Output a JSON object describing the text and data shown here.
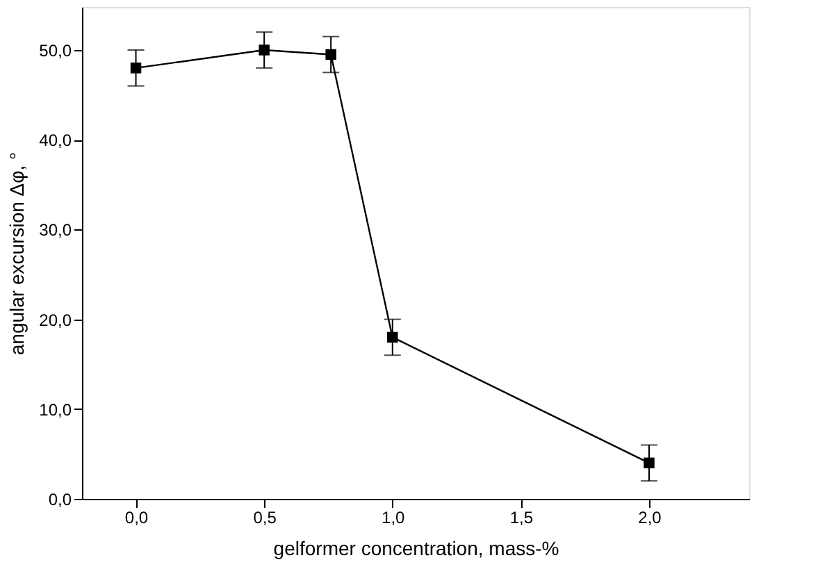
{
  "chart_data": {
    "type": "line",
    "xlabel": "gelformer concentration, mass-%",
    "ylabel": "angular excursion Δφ, °",
    "x": [
      0.0,
      0.5,
      0.76,
      1.0,
      2.0
    ],
    "series": [
      {
        "color": "#000000",
        "values": [
          48,
          50,
          49.5,
          18,
          4
        ],
        "errors": [
          [
            46,
            50
          ],
          [
            48,
            52
          ],
          [
            47.5,
            51.5
          ],
          [
            16,
            20
          ],
          [
            2,
            6
          ]
        ]
      }
    ],
    "xlim": [
      -0.21,
      2.39
    ],
    "ylim": [
      0,
      54.8
    ],
    "xticks": [
      {
        "value": 0,
        "label": "0,0"
      },
      {
        "value": 0.5,
        "label": "0,5"
      },
      {
        "value": 1,
        "label": "1,0"
      },
      {
        "value": 1.5,
        "label": "1,5"
      },
      {
        "value": 2,
        "label": "2,0"
      }
    ],
    "yticks": [
      {
        "value": 0,
        "label": "0,0"
      },
      {
        "value": 10,
        "label": "10,0"
      },
      {
        "value": 20,
        "label": "20,0"
      },
      {
        "value": 30,
        "label": "30,0"
      },
      {
        "value": 40,
        "label": "40,0"
      },
      {
        "value": 50,
        "label": "50,0"
      }
    ],
    "marker": "square",
    "line_style": "solid",
    "grid": false
  }
}
